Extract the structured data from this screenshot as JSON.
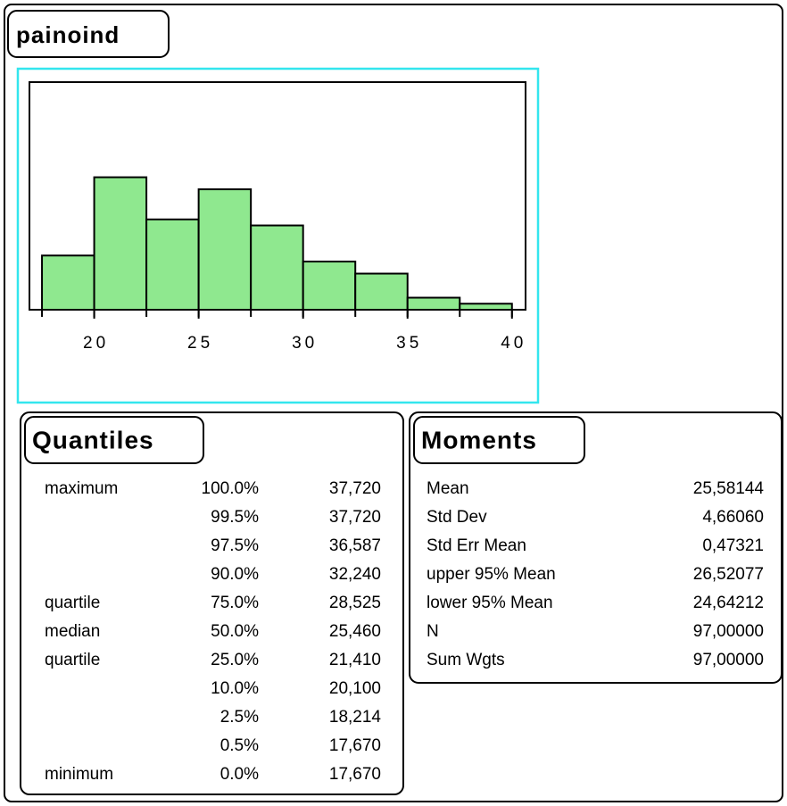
{
  "title": "painoind",
  "chart_data": {
    "type": "histogram",
    "bins": [
      17.5,
      20,
      22.5,
      25,
      27.5,
      30,
      32.5,
      35,
      37.5,
      40
    ],
    "values": [
      9,
      22,
      15,
      20,
      14,
      8,
      6,
      2,
      1
    ],
    "color": "#8fe88f",
    "xlim": [
      16.9,
      40.65
    ],
    "xticks": [
      20,
      25,
      30,
      35,
      40
    ],
    "ylim": [
      0,
      37.8
    ],
    "grid": false
  },
  "quantiles": {
    "title": "Quantiles",
    "rows": [
      [
        "maximum",
        "100.0%",
        "37,720"
      ],
      [
        "",
        "99.5%",
        "37,720"
      ],
      [
        "",
        "97.5%",
        "36,587"
      ],
      [
        "",
        "90.0%",
        "32,240"
      ],
      [
        "quartile",
        "75.0%",
        "28,525"
      ],
      [
        "median",
        "50.0%",
        "25,460"
      ],
      [
        "quartile",
        "25.0%",
        "21,410"
      ],
      [
        "",
        "10.0%",
        "20,100"
      ],
      [
        "",
        "2.5%",
        "18,214"
      ],
      [
        "",
        "0.5%",
        "17,670"
      ],
      [
        "minimum",
        "0.0%",
        "17,670"
      ]
    ]
  },
  "moments": {
    "title": "Moments",
    "rows": [
      [
        "Mean",
        "25,58144"
      ],
      [
        "Std Dev",
        "4,66060"
      ],
      [
        "Std Err Mean",
        "0,47321"
      ],
      [
        "upper 95% Mean",
        "26,52077"
      ],
      [
        "lower 95% Mean",
        "24,64212"
      ],
      [
        "N",
        "97,00000"
      ],
      [
        "Sum Wgts",
        "97,00000"
      ]
    ]
  }
}
